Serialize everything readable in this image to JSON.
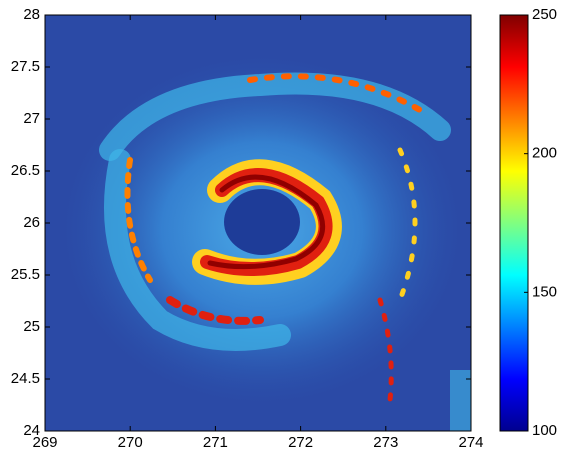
{
  "chart_data": {
    "type": "heatmap",
    "xlim": [
      269,
      274
    ],
    "xticks": [
      269,
      270,
      271,
      272,
      273,
      274
    ],
    "ylim": [
      24,
      28
    ],
    "yticks": [
      24,
      24.5,
      25,
      25.5,
      26,
      26.5,
      27,
      27.5,
      28
    ],
    "clim": [
      100,
      250
    ],
    "cticks": [
      100,
      150,
      200,
      250
    ],
    "colormap": [
      "#00008f",
      "#0000ff",
      "#0080ff",
      "#00ffff",
      "#80ff80",
      "#ffff00",
      "#ff8000",
      "#ff0000",
      "#800000"
    ]
  }
}
